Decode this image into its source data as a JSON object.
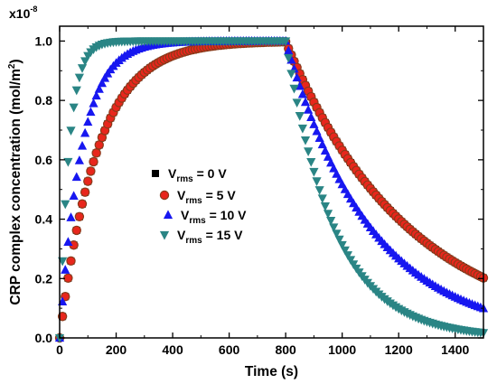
{
  "chart_data": {
    "type": "scatter",
    "xlabel": "Time (s)",
    "ylabel": "CRP complex concentration (mol/m",
    "ylabel_sup": "2",
    "ylabel_close": ")",
    "y_multiplier": "x10",
    "y_multiplier_exp": "-8",
    "xlim": [
      0,
      1500
    ],
    "ylim": [
      0,
      1.05
    ],
    "xticks": [
      0,
      200,
      400,
      600,
      800,
      1000,
      1200,
      1400
    ],
    "yticks": [
      0.0,
      0.2,
      0.4,
      0.6,
      0.8,
      1.0
    ],
    "xtick_labels": [
      "0",
      "200",
      "400",
      "600",
      "800",
      "1000",
      "1200",
      "1400"
    ],
    "ytick_labels": [
      "0.0",
      "0.2",
      "0.4",
      "0.6",
      "0.8",
      "1.0"
    ],
    "grid": false,
    "legend_position": "center-left",
    "x_step": 10,
    "switch_time": 800,
    "series": [
      {
        "name_main": "V",
        "name_sub": "rms",
        "name_rest": " = 0 V",
        "marker": "square",
        "color": "#000000",
        "rise_rate": 0.0075,
        "decay_rate": 0.00228
      },
      {
        "name_main": "V",
        "name_sub": "rms",
        "name_rest": " = 5 V",
        "marker": "circle",
        "color": "#e8261c",
        "edge_color": "#8b3a1a",
        "rise_rate": 0.0075,
        "decay_rate": 0.00228
      },
      {
        "name_main": "V",
        "name_sub": "rms",
        "name_rest": " = 10 V",
        "marker": "triangle-up",
        "color": "#1717f0",
        "rise_rate": 0.013,
        "decay_rate": 0.0033
      },
      {
        "name_main": "V",
        "name_sub": "rms",
        "name_rest": " = 15 V",
        "marker": "triangle-down",
        "color": "#2a8585",
        "rise_rate": 0.03,
        "decay_rate": 0.0058
      }
    ]
  }
}
